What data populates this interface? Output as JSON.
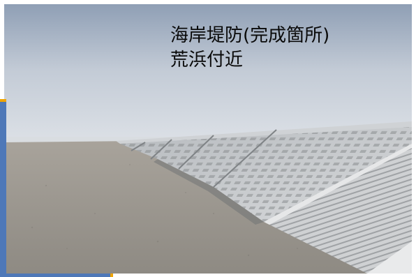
{
  "caption": {
    "line1": "海岸堤防(完成箇所)",
    "line2": "荒浜付近"
  },
  "colors": {
    "accent": "#4e78b8",
    "accent_tick": "#f0a400",
    "text": "#0a0a0a"
  },
  "icons": [
    "seawall-photo"
  ]
}
